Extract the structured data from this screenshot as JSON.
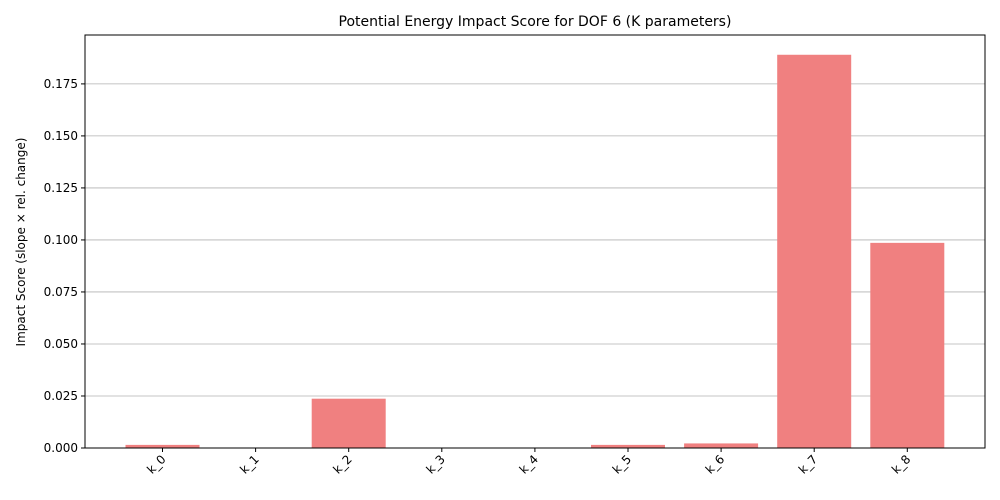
{
  "chart_data": {
    "type": "bar",
    "title": "Potential Energy Impact Score for DOF 6 (K parameters)",
    "xlabel": "",
    "ylabel": "Impact Score (slope × rel. change)",
    "categories": [
      "k_0",
      "k_1",
      "k_2",
      "k_3",
      "k_4",
      "k_5",
      "k_6",
      "k_7",
      "k_8"
    ],
    "values": [
      0.0015,
      0.0,
      0.0237,
      0.0,
      0.0,
      0.0015,
      0.0022,
      0.189,
      0.0986
    ],
    "ylim": [
      0,
      0.1985
    ],
    "yticks": [
      "0.000",
      "0.025",
      "0.050",
      "0.075",
      "0.100",
      "0.125",
      "0.150",
      "0.175"
    ],
    "grid": "y",
    "bar_color": "#f08080"
  }
}
